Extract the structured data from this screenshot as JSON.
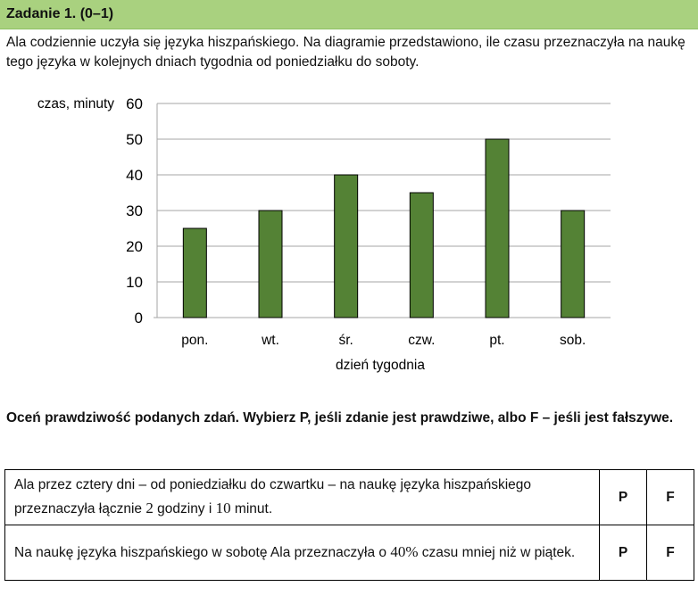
{
  "header": {
    "title": "Zadanie 1. (0–1)"
  },
  "intro": {
    "text": "Ala codziennie uczyła się języka hiszpańskiego. Na diagramie przedstawiono, ile czasu przeznaczyła na naukę tego języka w kolejnych dniach tygodnia od poniedziałku do soboty."
  },
  "colors": {
    "header_bg": "#a9d17f",
    "bar": "#548235"
  },
  "chart_data": {
    "type": "bar",
    "title": "",
    "ylabel": "czas, minuty",
    "xlabel": "dzień tygodnia",
    "categories": [
      "pon.",
      "wt.",
      "śr.",
      "czw.",
      "pt.",
      "sob."
    ],
    "values": [
      25,
      30,
      40,
      35,
      50,
      30
    ],
    "ylim": [
      0,
      60
    ],
    "yticks": [
      "0",
      "10",
      "20",
      "30",
      "40",
      "50",
      "60"
    ],
    "grid": true,
    "legend": "none"
  },
  "instruction": {
    "text": "Oceń prawdziwość podanych zdań. Wybierz P, jeśli zdanie jest prawdziwe, albo F – jeśli jest fałszywe."
  },
  "statements": [
    {
      "pre": "Ala przez cztery dni – od poniedziałku do czwartku – na naukę języka hiszpańskiego przeznaczyła łącznie ",
      "v1": "2",
      "mid": " godziny i ",
      "v2": "10",
      "post": " minut.",
      "p": "P",
      "f": "F"
    },
    {
      "pre": "Na naukę języka hiszpańskiego w sobotę Ala przeznaczyła o ",
      "v1": "40%",
      "mid": " czasu mniej niż w piątek.",
      "v2": "",
      "post": "",
      "p": "P",
      "f": "F"
    }
  ]
}
